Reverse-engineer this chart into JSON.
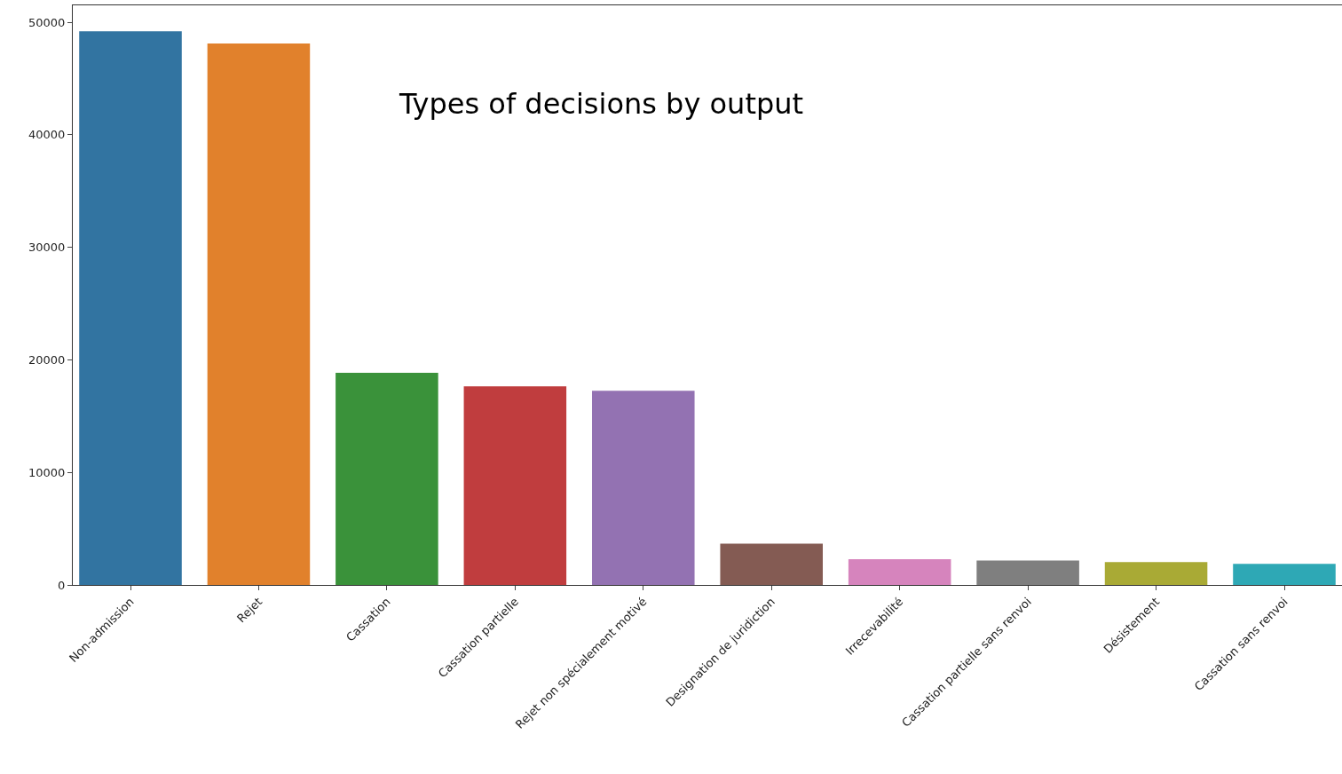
{
  "chart_data": {
    "type": "bar",
    "title": "Types of decisions by output",
    "categories": [
      "Non-admission",
      "Rejet",
      "Cassation",
      "Cassation partielle",
      "Rejet non spécialement motivé",
      "Designation de juridiction",
      "Irrecevabilité",
      "Cassation partielle sans renvoi",
      "Désistement",
      "Cassation sans renvoi"
    ],
    "values": [
      49200,
      48100,
      18850,
      17650,
      17250,
      3670,
      2290,
      2170,
      2030,
      1880
    ],
    "colors": [
      "#3274a1",
      "#e1812c",
      "#3a923a",
      "#c03d3e",
      "#9372b2",
      "#845b53",
      "#d684bd",
      "#7f7f7f",
      "#a9aa35",
      "#2ea8b5"
    ],
    "ylim": [
      0,
      51500
    ],
    "yticks": [
      0,
      10000,
      20000,
      30000,
      40000,
      50000
    ]
  }
}
